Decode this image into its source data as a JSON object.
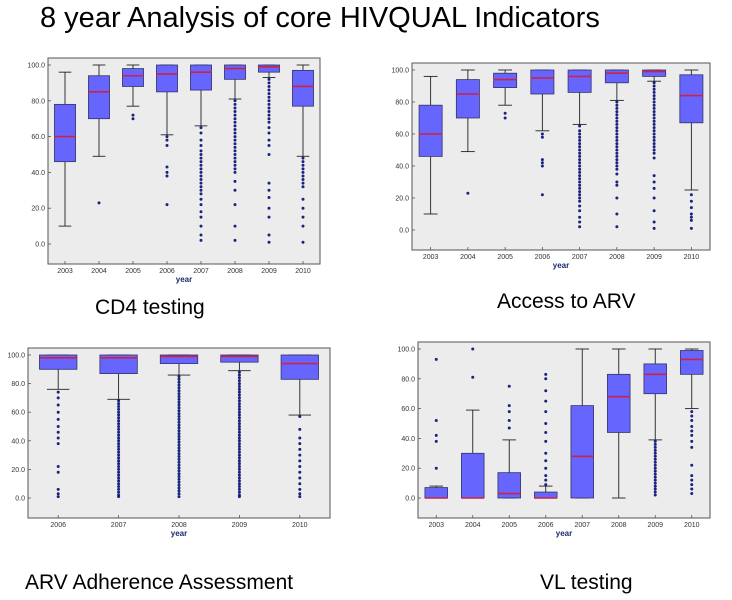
{
  "page": {
    "title": "8 year Analysis of core HIVQUAL Indicators"
  },
  "colors": {
    "plot_bg": "#ececec",
    "box_fill": "#6666ff",
    "box_stroke": "#333366",
    "median": "#cc2244",
    "outlier": "#1a237e"
  },
  "chart_data": [
    {
      "type": "box",
      "caption": "CD4 testing",
      "xlabel": "year",
      "ylabel": "",
      "ylim": [
        0,
        100
      ],
      "yticks": [
        "0.0",
        "20.0",
        "40.0",
        "60.0",
        "80.0",
        "100.0"
      ],
      "categories": [
        "2003",
        "2004",
        "2005",
        "2006",
        "2007",
        "2008",
        "2009",
        "2010"
      ],
      "boxes": [
        {
          "min": 10,
          "q1": 46,
          "median": 60,
          "q3": 78,
          "max": 96,
          "outliers": []
        },
        {
          "min": 49,
          "q1": 70,
          "median": 85,
          "q3": 94,
          "max": 100,
          "outliers": [
            23
          ]
        },
        {
          "min": 77,
          "q1": 88,
          "median": 94,
          "q3": 98,
          "max": 100,
          "outliers": [
            70,
            72
          ]
        },
        {
          "min": 61,
          "q1": 85,
          "median": 95,
          "q3": 100,
          "max": 100,
          "outliers": [
            60,
            58,
            55,
            43,
            40,
            38,
            22
          ]
        },
        {
          "min": 66,
          "q1": 86,
          "median": 96,
          "q3": 100,
          "max": 100,
          "outliers": [
            65,
            62,
            58,
            55,
            52,
            50,
            48,
            46,
            44,
            42,
            40,
            38,
            36,
            34,
            32,
            30,
            28,
            25,
            22,
            18,
            15,
            10,
            5,
            2
          ]
        },
        {
          "min": 81,
          "q1": 92,
          "median": 98,
          "q3": 100,
          "max": 100,
          "outliers": [
            80,
            78,
            76,
            74,
            72,
            70,
            68,
            66,
            64,
            62,
            60,
            58,
            56,
            54,
            52,
            50,
            48,
            46,
            44,
            42,
            40,
            35,
            30,
            22,
            10,
            2
          ]
        },
        {
          "min": 93,
          "q1": 96,
          "median": 99,
          "q3": 100,
          "max": 100,
          "outliers": [
            92,
            90,
            88,
            86,
            84,
            82,
            80,
            78,
            76,
            74,
            72,
            70,
            68,
            65,
            62,
            58,
            55,
            50,
            34,
            30,
            26,
            20,
            15,
            5,
            1
          ]
        },
        {
          "min": 49,
          "q1": 77,
          "median": 88,
          "q3": 97,
          "max": 100,
          "outliers": [
            48,
            46,
            44,
            42,
            40,
            38,
            36,
            34,
            32,
            25,
            20,
            15,
            10,
            1
          ]
        }
      ]
    },
    {
      "type": "box",
      "caption": "Access to ARV",
      "xlabel": "year",
      "ylabel": "",
      "ylim": [
        0,
        100
      ],
      "yticks": [
        "0.0",
        "20.0",
        "40.0",
        "60.0",
        "80.0",
        "100.0"
      ],
      "categories": [
        "2003",
        "2004",
        "2005",
        "2006",
        "2007",
        "2008",
        "2009",
        "2010"
      ],
      "boxes": [
        {
          "min": 10,
          "q1": 46,
          "median": 60,
          "q3": 78,
          "max": 96,
          "outliers": []
        },
        {
          "min": 49,
          "q1": 70,
          "median": 85,
          "q3": 94,
          "max": 100,
          "outliers": [
            23
          ]
        },
        {
          "min": 78,
          "q1": 89,
          "median": 94,
          "q3": 98,
          "max": 100,
          "outliers": [
            70,
            73
          ]
        },
        {
          "min": 62,
          "q1": 85,
          "median": 95,
          "q3": 100,
          "max": 100,
          "outliers": [
            60,
            58,
            44,
            42,
            40,
            22
          ]
        },
        {
          "min": 66,
          "q1": 86,
          "median": 96,
          "q3": 100,
          "max": 100,
          "outliers": [
            65,
            62,
            60,
            58,
            56,
            54,
            52,
            50,
            48,
            46,
            44,
            42,
            40,
            38,
            36,
            34,
            32,
            30,
            28,
            26,
            24,
            22,
            20,
            18,
            15,
            12,
            8,
            5,
            2
          ]
        },
        {
          "min": 81,
          "q1": 92,
          "median": 98,
          "q3": 100,
          "max": 100,
          "outliers": [
            80,
            78,
            76,
            74,
            72,
            70,
            68,
            66,
            64,
            62,
            60,
            58,
            56,
            54,
            52,
            50,
            48,
            46,
            44,
            42,
            40,
            38,
            35,
            30,
            28,
            20,
            10,
            2
          ]
        },
        {
          "min": 93,
          "q1": 96,
          "median": 99,
          "q3": 100,
          "max": 100,
          "outliers": [
            92,
            90,
            88,
            86,
            84,
            82,
            80,
            78,
            76,
            74,
            72,
            70,
            68,
            66,
            64,
            62,
            60,
            58,
            56,
            54,
            52,
            50,
            48,
            45,
            34,
            30,
            26,
            20,
            12,
            5,
            1
          ]
        },
        {
          "min": 25,
          "q1": 67,
          "median": 84,
          "q3": 97,
          "max": 100,
          "outliers": [
            22,
            18,
            14,
            10,
            8,
            6,
            1
          ]
        }
      ]
    },
    {
      "type": "box",
      "caption": "ARV Adherence Assessment",
      "xlabel": "year",
      "ylabel": "",
      "ylim": [
        0,
        100
      ],
      "yticks": [
        "0.0",
        "20.0",
        "40.0",
        "60.0",
        "80.0",
        "100.0"
      ],
      "categories": [
        "2006",
        "2007",
        "2008",
        "2009",
        "2010"
      ],
      "boxes": [
        {
          "min": 76,
          "q1": 90,
          "median": 98,
          "q3": 100,
          "max": 100,
          "outliers": [
            74,
            70,
            65,
            60,
            55,
            50,
            46,
            42,
            38,
            22,
            18,
            6,
            3,
            1
          ]
        },
        {
          "min": 69,
          "q1": 87,
          "median": 98,
          "q3": 100,
          "max": 100,
          "outliers": [
            68,
            66,
            64,
            62,
            60,
            58,
            56,
            54,
            52,
            50,
            48,
            46,
            44,
            42,
            40,
            38,
            36,
            34,
            32,
            30,
            28,
            26,
            24,
            22,
            20,
            18,
            16,
            14,
            12,
            10,
            8,
            6,
            4,
            2,
            1
          ]
        },
        {
          "min": 86,
          "q1": 94,
          "median": 99,
          "q3": 100,
          "max": 100,
          "outliers": [
            85,
            83,
            81,
            79,
            77,
            75,
            73,
            71,
            69,
            67,
            65,
            63,
            61,
            59,
            57,
            55,
            53,
            51,
            49,
            47,
            45,
            43,
            41,
            39,
            37,
            35,
            33,
            31,
            29,
            27,
            25,
            23,
            21,
            19,
            17,
            15,
            13,
            11,
            9,
            7,
            5,
            3,
            1
          ]
        },
        {
          "min": 89,
          "q1": 95,
          "median": 99,
          "q3": 100,
          "max": 100,
          "outliers": [
            88,
            86,
            84,
            82,
            80,
            78,
            76,
            74,
            72,
            70,
            68,
            66,
            64,
            62,
            60,
            58,
            56,
            54,
            52,
            50,
            48,
            46,
            44,
            42,
            40,
            38,
            36,
            34,
            32,
            30,
            28,
            26,
            24,
            22,
            20,
            18,
            16,
            14,
            12,
            10,
            8,
            6,
            4,
            2,
            1
          ]
        },
        {
          "min": 58,
          "q1": 83,
          "median": 94,
          "q3": 100,
          "max": 100,
          "outliers": [
            57,
            48,
            42,
            38,
            34,
            30,
            26,
            22,
            18,
            14,
            10,
            6,
            3,
            1
          ]
        }
      ]
    },
    {
      "type": "box",
      "caption": "VL testing",
      "xlabel": "year",
      "ylabel": "",
      "ylim": [
        0,
        100
      ],
      "yticks": [
        "0.0",
        "20.0",
        "40.0",
        "60.0",
        "80.0",
        "100.0"
      ],
      "categories": [
        "2003",
        "2004",
        "2005",
        "2006",
        "2007",
        "2008",
        "2009",
        "2010"
      ],
      "boxes": [
        {
          "min": 0,
          "q1": 0,
          "median": 0,
          "q3": 7,
          "max": 8,
          "outliers": [
            93,
            52,
            42,
            38,
            20
          ]
        },
        {
          "min": 0,
          "q1": 0,
          "median": 0,
          "q3": 30,
          "max": 59,
          "outliers": [
            100,
            81
          ]
        },
        {
          "min": 0,
          "q1": 0,
          "median": 3,
          "q3": 17,
          "max": 39,
          "outliers": [
            75,
            62,
            58,
            52,
            47
          ]
        },
        {
          "min": 0,
          "q1": 0,
          "median": 0,
          "q3": 4,
          "max": 8,
          "outliers": [
            83,
            80,
            72,
            65,
            58,
            50,
            44,
            38,
            30,
            25,
            20,
            15,
            12,
            9
          ]
        },
        {
          "min": 0,
          "q1": 0,
          "median": 28,
          "q3": 62,
          "max": 100,
          "outliers": []
        },
        {
          "min": 0,
          "q1": 44,
          "median": 68,
          "q3": 83,
          "max": 100,
          "outliers": []
        },
        {
          "min": 39,
          "q1": 70,
          "median": 83,
          "q3": 90,
          "max": 100,
          "outliers": [
            38,
            36,
            34,
            32,
            30,
            28,
            26,
            24,
            22,
            20,
            18,
            16,
            14,
            12,
            10,
            8,
            6,
            4,
            2
          ]
        },
        {
          "min": 60,
          "q1": 83,
          "median": 93,
          "q3": 99,
          "max": 100,
          "outliers": [
            58,
            55,
            52,
            48,
            45,
            42,
            38,
            34,
            22,
            15,
            12,
            9,
            6,
            3
          ]
        }
      ]
    }
  ]
}
